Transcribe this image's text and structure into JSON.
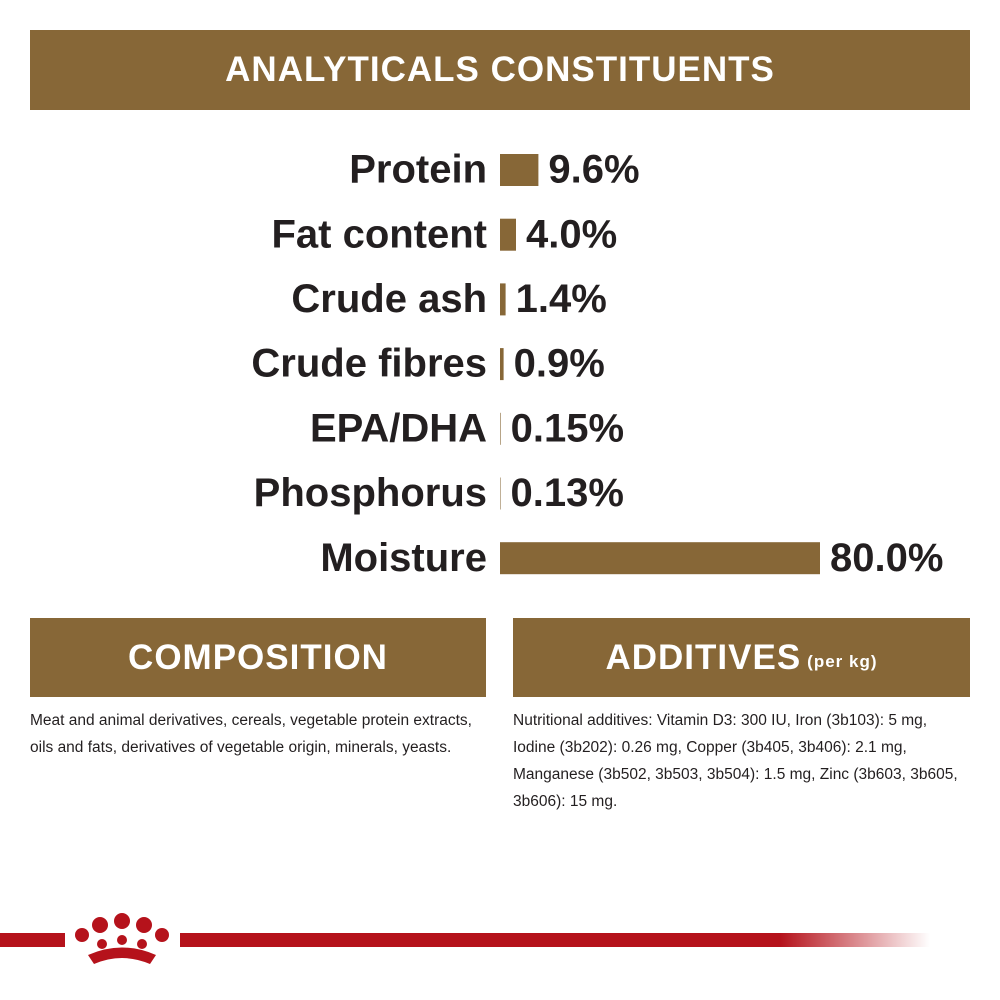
{
  "chart_data": {
    "type": "bar",
    "orientation": "horizontal",
    "title": "ANALYTICALS CONSTITUENTS",
    "categories": [
      "Protein",
      "Fat content",
      "Crude ash",
      "Crude fibres",
      "EPA/DHA",
      "Phosphorus",
      "Moisture"
    ],
    "values": [
      9.6,
      4.0,
      1.4,
      0.9,
      0.15,
      0.13,
      80.0
    ],
    "value_labels": [
      "9.6%",
      "4.0%",
      "1.4%",
      "0.9%",
      "0.15%",
      "0.13%",
      "80.0%"
    ],
    "color": "#876737"
  },
  "composition": {
    "title": "COMPOSITION",
    "text": "Meat and animal derivatives, cereals, vegetable protein extracts, oils and fats, derivatives of vegetable origin, minerals, yeasts."
  },
  "additives": {
    "title": "ADDITIVES",
    "note": "(per kg)",
    "text": "Nutritional additives: Vitamin D3: 300 IU, Iron (3b103): 5 mg, Iodine (3b202): 0.26 mg, Copper (3b405, 3b406): 2.1 mg, Manganese (3b502, 3b503, 3b504): 1.5 mg, Zinc (3b603, 3b605, 3b606): 15 mg."
  }
}
